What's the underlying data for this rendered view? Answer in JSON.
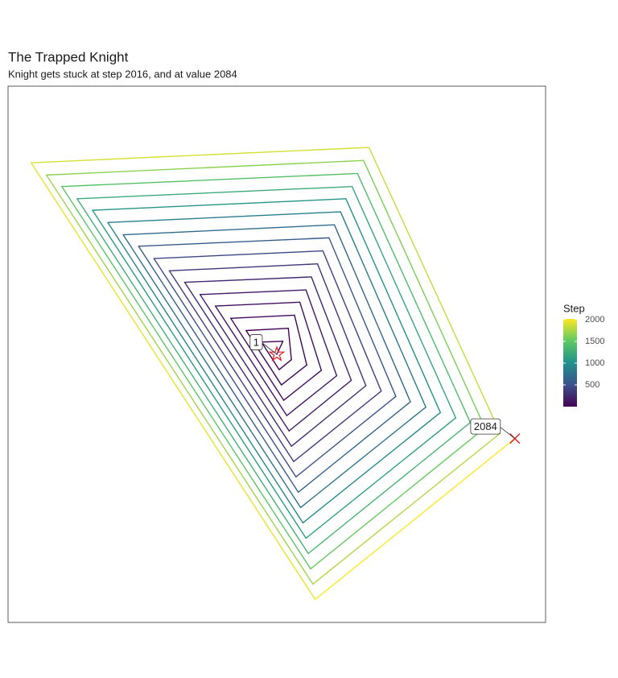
{
  "chart_data": {
    "type": "path",
    "title": "The Trapped Knight",
    "subtitle": "Knight gets stuck at step 2016, and at value 2084",
    "xlim": [
      -35,
      35
    ],
    "ylim": [
      -35,
      35
    ],
    "x": [
      0,
      0.8,
      -2,
      0.3,
      1.9,
      1.5,
      -4,
      0.6,
      3.9,
      2.3,
      -6,
      0.9,
      5.8,
      3,
      -8,
      1.3,
      7.8,
      3.8,
      -10,
      1.6,
      9.7,
      4.5,
      -12,
      1.9,
      11.6,
      5.3,
      -14,
      2.2,
      13.6,
      6,
      -16,
      2.5,
      15.5,
      6.8,
      -18,
      2.8,
      17.4,
      7.5,
      -20,
      3.1,
      19.4,
      8.3,
      -22,
      3.4,
      21.3,
      9,
      -24,
      3.8,
      23.3,
      9.8,
      -26,
      4.1,
      25.2,
      10.5,
      -28,
      4.4,
      27.1,
      11.3,
      -30,
      4.7,
      29.1,
      12,
      -32,
      5,
      31
    ],
    "y": [
      0,
      1.7,
      1.6,
      -2,
      -0.7,
      3.4,
      3.1,
      -4,
      -1.4,
      5.1,
      4.7,
      -6,
      -2.1,
      6.8,
      6.3,
      -8,
      -2.8,
      8.4,
      7.8,
      -10,
      -3.4,
      10.1,
      9.4,
      -12,
      -4.1,
      11.8,
      10.9,
      -14,
      -4.8,
      13.5,
      12.5,
      -16,
      -5.5,
      15.2,
      14.1,
      -18,
      -6.2,
      16.9,
      15.6,
      -20,
      -6.9,
      18.6,
      17.2,
      -22,
      -7.6,
      20.3,
      18.8,
      -24,
      -8.3,
      21.9,
      20.3,
      -26,
      -8.9,
      23.6,
      21.9,
      -28,
      -9.6,
      25.3,
      23.4,
      -30,
      -10.3,
      27,
      25,
      -32,
      -11
    ],
    "step": [
      1,
      2,
      3,
      4,
      8,
      12,
      18,
      24,
      32,
      40,
      49,
      60,
      71,
      83,
      96,
      111,
      126,
      142,
      159,
      178,
      197,
      217,
      238,
      260,
      284,
      308,
      333,
      359,
      386,
      414,
      443,
      473,
      504,
      536,
      569,
      603,
      638,
      674,
      711,
      749,
      788,
      827,
      868,
      910,
      953,
      997,
      1041,
      1087,
      1134,
      1182,
      1230,
      1280,
      1331,
      1383,
      1435,
      1489,
      1544,
      1599,
      1656,
      1713,
      1772,
      1831,
      1892,
      1953,
      2016
    ],
    "colormap": [
      "#440154",
      "#3b528b",
      "#21918c",
      "#5ec962",
      "#fde725"
    ],
    "marker_color": "#e31a1c",
    "annotations": [
      {
        "label": "1"
      },
      {
        "label": "2084"
      }
    ],
    "legend": {
      "title": "Step",
      "limits": [
        1,
        2016
      ],
      "ticks": [
        500,
        1000,
        1500,
        2000
      ]
    }
  }
}
